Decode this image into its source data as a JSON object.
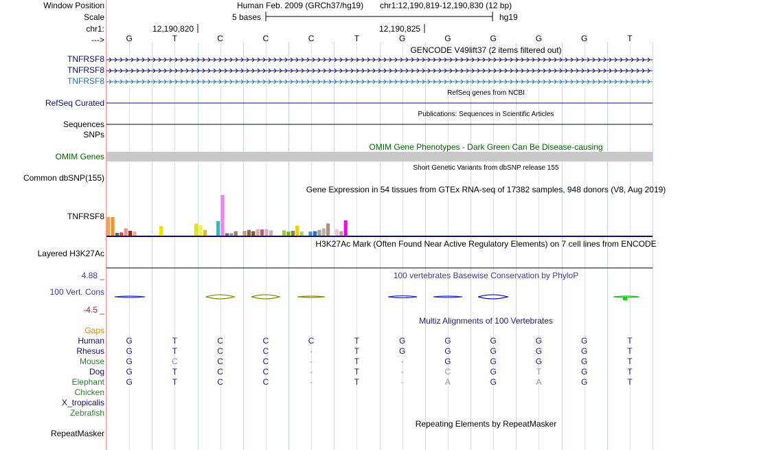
{
  "header": {
    "position_label": "Window Position",
    "scale_label": "Scale",
    "chr_label": "chr1:",
    "strand_label": "--->",
    "assembly": "Human Feb. 2009 (GRCh37/hg19)",
    "range": "chr1:12,190,819-12,190,830 (12 bp)",
    "scale_text": "5 bases",
    "db": "hg19",
    "coord1": "12,190,820",
    "coord2": "12,190,825"
  },
  "sequence": [
    "G",
    "T",
    "C",
    "C",
    "C",
    "T",
    "G",
    "G",
    "G",
    "G",
    "G",
    "T"
  ],
  "tracks": {
    "gencode": {
      "title": "GENCODE V49lift37 (2 items filtered out)",
      "items": [
        "TNFRSF8",
        "TNFRSF8",
        "TNFRSF8"
      ],
      "colors": [
        "#0c0c78",
        "#0c0c78",
        "#1f6fb4"
      ]
    },
    "refseq": {
      "title": "RefSeq genes from NCBI",
      "label": "RefSeq Curated",
      "color": "#0c0c78"
    },
    "publications": {
      "title": "Publications: Sequences in Scientific Articles",
      "label": "Sequences"
    },
    "snps_label": "SNPs",
    "omim": {
      "title": "OMIM Gene Phenotypes - Dark Green Can Be Disease-causing",
      "label": "OMIM Genes",
      "color": "#006400",
      "bar_color": "#c8c8c8"
    },
    "dbsnp": {
      "title": "Short Genetic Variants from dbSNP release 155",
      "label": "Common dbSNP(155)"
    },
    "gtex": {
      "title": "Gene Expression in 54 tissues from GTEx RNA-seq of 17382 samples, 948 donors (V8, Aug 2019)",
      "label": "TNFRSF8",
      "bars": [
        {
          "v": 0.46,
          "c": "#f4a44c"
        },
        {
          "v": 0.46,
          "c": "#f09030"
        },
        {
          "v": 0.07,
          "c": "#2c7a7a"
        },
        {
          "v": 0.08,
          "c": "#dc4040"
        },
        {
          "v": 0.18,
          "c": "#e89090"
        },
        {
          "v": 0.12,
          "c": "#b21e1e"
        },
        {
          "v": 0.1,
          "c": "#e0b090"
        },
        {
          "v": 0.02,
          "c": "#eeeeee"
        },
        {
          "v": 0.02,
          "c": "#eeeeee"
        },
        {
          "v": 0.02,
          "c": "#eeeeee"
        },
        {
          "v": 0.02,
          "c": "#eeeeee"
        },
        {
          "v": 0.02,
          "c": "#eeeeee"
        },
        {
          "v": 0.24,
          "c": "#e6e600"
        },
        {
          "v": 0.02,
          "c": "#eeeeee"
        },
        {
          "v": 0.02,
          "c": "#eeeeee"
        },
        {
          "v": 0.02,
          "c": "#eeeeee"
        },
        {
          "v": 0.02,
          "c": "#eeeeee"
        },
        {
          "v": 0.02,
          "c": "#eeeeee"
        },
        {
          "v": 0.02,
          "c": "#eeeeee"
        },
        {
          "v": 0.02,
          "c": "#eeeeee"
        },
        {
          "v": 0.3,
          "c": "#e6e600"
        },
        {
          "v": 0.26,
          "c": "#f2f23c"
        },
        {
          "v": 0.14,
          "c": "#d8b848"
        },
        {
          "v": 0.02,
          "c": "#eeeeee"
        },
        {
          "v": 0.02,
          "c": "#eeeeee"
        },
        {
          "v": 0.36,
          "c": "#22c0c0"
        },
        {
          "v": 1.0,
          "c": "#ee82ee"
        },
        {
          "v": 0.06,
          "c": "#6a6a6a"
        },
        {
          "v": 0.06,
          "c": "#999999"
        },
        {
          "v": 0.11,
          "c": "#a08060"
        },
        {
          "v": 0.02,
          "c": "#eeeeee"
        },
        {
          "v": 0.12,
          "c": "#c0a080"
        },
        {
          "v": 0.14,
          "c": "#8c6a4a"
        },
        {
          "v": 0.11,
          "c": "#7a5a3a"
        },
        {
          "v": 0.16,
          "c": "#e0a8a8"
        },
        {
          "v": 0.15,
          "c": "#c06060"
        },
        {
          "v": 0.16,
          "c": "#d0b0d0"
        },
        {
          "v": 0.13,
          "c": "#c8b0b0"
        },
        {
          "v": 0.02,
          "c": "#eeeeee"
        },
        {
          "v": 0.02,
          "c": "#eeeeee"
        },
        {
          "v": 0.13,
          "c": "#9acd32"
        },
        {
          "v": 0.1,
          "c": "#7ab800"
        },
        {
          "v": 0.12,
          "c": "#808080"
        },
        {
          "v": 0.25,
          "c": "#f0d000"
        },
        {
          "v": 0.1,
          "c": "#a0d080"
        },
        {
          "v": 0.02,
          "c": "#eeeeee"
        },
        {
          "v": 0.1,
          "c": "#4a90d0"
        },
        {
          "v": 0.11,
          "c": "#3070c0"
        },
        {
          "v": 0.14,
          "c": "#a0a0a0"
        },
        {
          "v": 0.18,
          "c": "#c0b0a0"
        },
        {
          "v": 0.3,
          "c": "#b09080"
        },
        {
          "v": 0.02,
          "c": "#eeeeee"
        },
        {
          "v": 0.16,
          "c": "#f0c8c8"
        },
        {
          "v": 0.11,
          "c": "#aaaaaa"
        },
        {
          "v": 0.38,
          "c": "#ff00ee"
        }
      ]
    },
    "h3k27ac": {
      "title": "H3K27Ac Mark (Often Found Near Active Regulatory Elements) on 7 cell lines from ENCODE",
      "label": "Layered H3K27Ac"
    },
    "phylop": {
      "title": "100 vertebrates Basewise Conservation by PhyloP",
      "label": "100 Vert. Cons",
      "max": "4.88 _",
      "min": "-4.5 _",
      "title_color": "#3a3a98",
      "max_color": "#3a3a98",
      "min_color": "#8a2a2a"
    },
    "multiz": {
      "title": "Multiz Alignments of 100 Vertebrates",
      "title_color": "#1a1a80",
      "gaps_label": "Gaps",
      "species": [
        {
          "name": "Human",
          "color": "#0c0c78",
          "bases": [
            "G",
            "T",
            "C",
            "C",
            "C",
            "T",
            "G",
            "G",
            "G",
            "G",
            "G",
            "T"
          ]
        },
        {
          "name": "Rhesus",
          "color": "#0c0c78",
          "bases": [
            "G",
            "T",
            "C",
            "C",
            "-",
            "T",
            "G",
            "G",
            "G",
            "G",
            "G",
            "T"
          ]
        },
        {
          "name": "Mouse",
          "color": "#2e7d2e",
          "bases": [
            "G",
            "C",
            "C",
            "C",
            "-",
            "T",
            "-",
            "G",
            "G",
            "G",
            "G",
            "T"
          ]
        },
        {
          "name": "Dog",
          "color": "#0c0c78",
          "bases": [
            "G",
            "T",
            "C",
            "C",
            "-",
            "T",
            "-",
            "C",
            "G",
            "T",
            "G",
            "T"
          ]
        },
        {
          "name": "Elephant",
          "color": "#2e7d2e",
          "bases": [
            "G",
            "T",
            "C",
            "C",
            "-",
            "T",
            "-",
            "A",
            "G",
            "A",
            "G",
            "T"
          ]
        },
        {
          "name": "Chicken",
          "color": "#2e7d2e",
          "bases": []
        },
        {
          "name": "X_tropicalis",
          "color": "#0c0c78",
          "bases": []
        },
        {
          "name": "Zebrafish",
          "color": "#2e7d2e",
          "bases": []
        }
      ],
      "light_cells": [
        [
          2,
          1
        ],
        [
          3,
          7
        ],
        [
          3,
          9
        ],
        [
          4,
          7
        ],
        [
          4,
          9
        ]
      ]
    },
    "repeatmasker": {
      "title": "Repeating Elements by RepeatMasker",
      "label": "RepeatMasker"
    }
  }
}
